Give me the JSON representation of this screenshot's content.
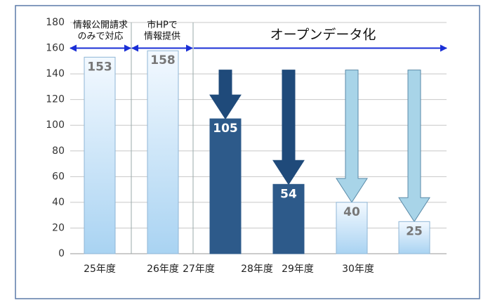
{
  "chart_data": {
    "type": "bar",
    "categories": [
      "25年度",
      "26年度",
      "27年度",
      "28年度",
      "29年度",
      "30年度"
    ],
    "values": [
      153,
      158,
      105,
      54,
      40,
      25
    ],
    "colors": [
      "#bfe0f7",
      "#bfe0f7",
      "#2d5a8a",
      "#2d5a8a",
      "#bfe0f7",
      "#bfe0f7"
    ],
    "ylim": [
      0,
      180
    ],
    "yticks": [
      0,
      20,
      40,
      60,
      80,
      100,
      120,
      140,
      160,
      180
    ],
    "grid": true,
    "annotations": [
      {
        "lines": [
          "情報公開請求",
          "のみで対応"
        ]
      },
      {
        "lines": [
          "市HPで",
          "情報提供"
        ]
      },
      {
        "lines": [
          "オープンデータ化"
        ]
      }
    ]
  }
}
